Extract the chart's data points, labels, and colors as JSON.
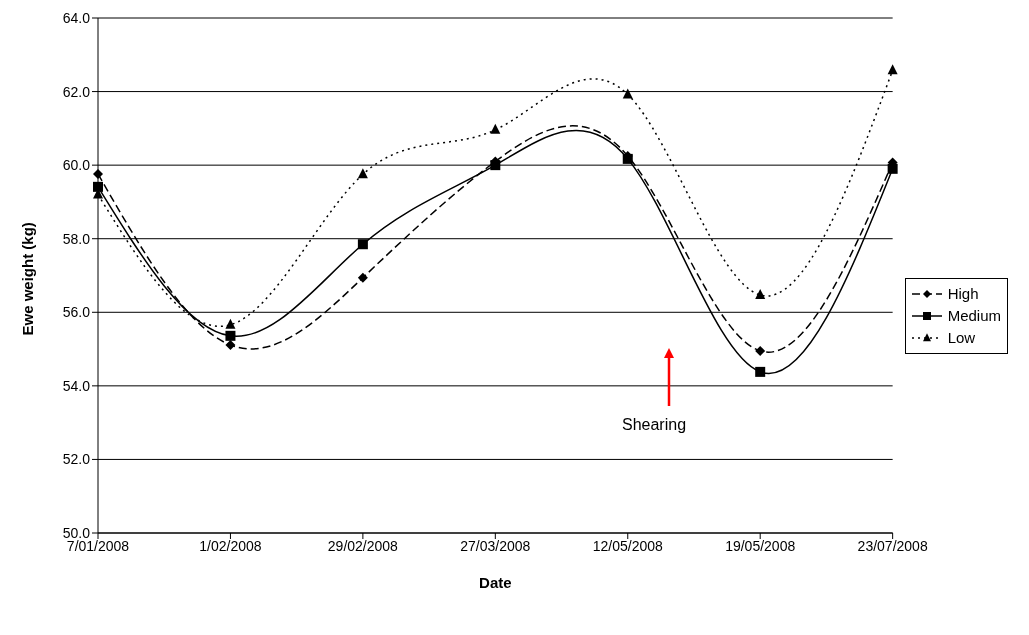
{
  "chart_data": {
    "type": "line",
    "xlabel": "Date",
    "ylabel": "Ewe weight (kg)",
    "categories": [
      "7/01/2008",
      "1/02/2008",
      "29/02/2008",
      "27/03/2008",
      "12/05/2008",
      "19/05/2008",
      "23/07/2008"
    ],
    "series": [
      {
        "name": "High",
        "color": "#000000",
        "marker": "diamond",
        "line_style": "dashed",
        "values": [
          59.76,
          55.11,
          56.94,
          60.1,
          60.25,
          54.95,
          60.07
        ]
      },
      {
        "name": "Medium",
        "color": "#000000",
        "marker": "square",
        "line_style": "solid",
        "values": [
          59.41,
          55.36,
          57.85,
          60.0,
          60.17,
          54.38,
          59.9
        ]
      },
      {
        "name": "Low",
        "color": "#000000",
        "marker": "triangle",
        "line_style": "dotted",
        "values": [
          59.2,
          55.66,
          59.75,
          60.96,
          61.92,
          56.47,
          62.58
        ]
      }
    ],
    "ylim": [
      50,
      64
    ],
    "yticks": [
      {
        "value": 50,
        "label": "50.0"
      },
      {
        "value": 52,
        "label": "52.0"
      },
      {
        "value": 54,
        "label": "54.0"
      },
      {
        "value": 56,
        "label": "56.0"
      },
      {
        "value": 58,
        "label": "58.0"
      },
      {
        "value": 60,
        "label": "60.0"
      },
      {
        "value": 62,
        "label": "62.0"
      },
      {
        "value": 64,
        "label": "64.0"
      }
    ],
    "grid": "y",
    "legend": "right",
    "annotations": [
      "Shearing"
    ]
  }
}
